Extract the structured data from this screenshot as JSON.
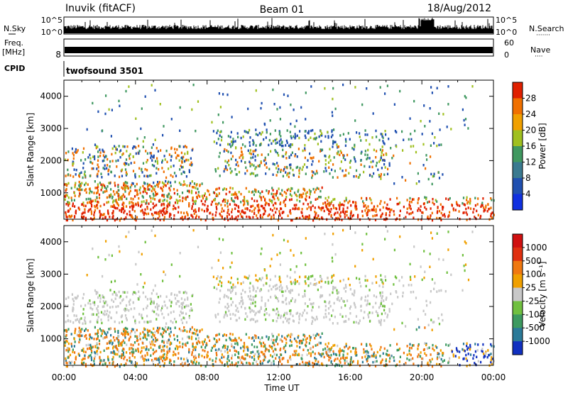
{
  "header": {
    "station": "Inuvik (fitACF)",
    "beam": "Beam 01",
    "date": "18/Aug/2012"
  },
  "nsky_panel": {
    "left_label": "N.Sky",
    "right_label": "N.Search",
    "left_ticks": [
      "10^5",
      "10^0"
    ],
    "right_ticks": [
      "10^5",
      "10^0"
    ],
    "right_dots": "·······"
  },
  "freq_panel": {
    "left_label_1": "Freq.",
    "left_label_2": "[MHz]",
    "left_ticks": [
      "8"
    ],
    "right_ticks": [
      "60",
      "0"
    ],
    "right_label": "Nave",
    "right_dots": "····"
  },
  "cpid_panel": {
    "label": "CPID",
    "value": "twofsound 3501"
  },
  "chart_data": [
    {
      "type": "heatmap",
      "quantity": "power",
      "ylabel": "Slant Range [km]",
      "yticks": [
        "1000",
        "2000",
        "3000",
        "4000"
      ],
      "ylim": [
        180,
        4500
      ],
      "colorbar_label": "Power [dB]",
      "colorbar_ticks": [
        "4",
        "8",
        "12",
        "16",
        "20",
        "24",
        "28"
      ],
      "colorbar_colors": [
        "#1030e0",
        "#2050b0",
        "#3a7a90",
        "#409860",
        "#a0c020",
        "#f0a000",
        "#f07000",
        "#e02000"
      ],
      "x_ticks": [
        "00:00",
        "04:00",
        "08:00",
        "12:00",
        "16:00",
        "20:00",
        "00:00"
      ]
    },
    {
      "type": "heatmap",
      "quantity": "velocity",
      "ylabel": "Slant Range [km]",
      "yticks": [
        "1000",
        "2000",
        "3000",
        "4000"
      ],
      "ylim": [
        180,
        4500
      ],
      "colorbar_label": "Velocity [m s⁻¹]",
      "colorbar_ticks": [
        "1000",
        "500",
        "100",
        "25",
        "-25",
        "-100",
        "-500",
        "-1000"
      ],
      "colorbar_colors": [
        "#1030c0",
        "#2b7a98",
        "#3d9a60",
        "#70c040",
        "#c8c8c8",
        "#f0a000",
        "#f07810",
        "#e03010",
        "#d01010"
      ],
      "x_ticks": [
        "00:00",
        "04:00",
        "08:00",
        "12:00",
        "16:00",
        "20:00",
        "00:00"
      ]
    }
  ],
  "xaxis": {
    "label": "Time UT"
  },
  "colors": {
    "frame": "#000000",
    "background": "#ffffff"
  }
}
